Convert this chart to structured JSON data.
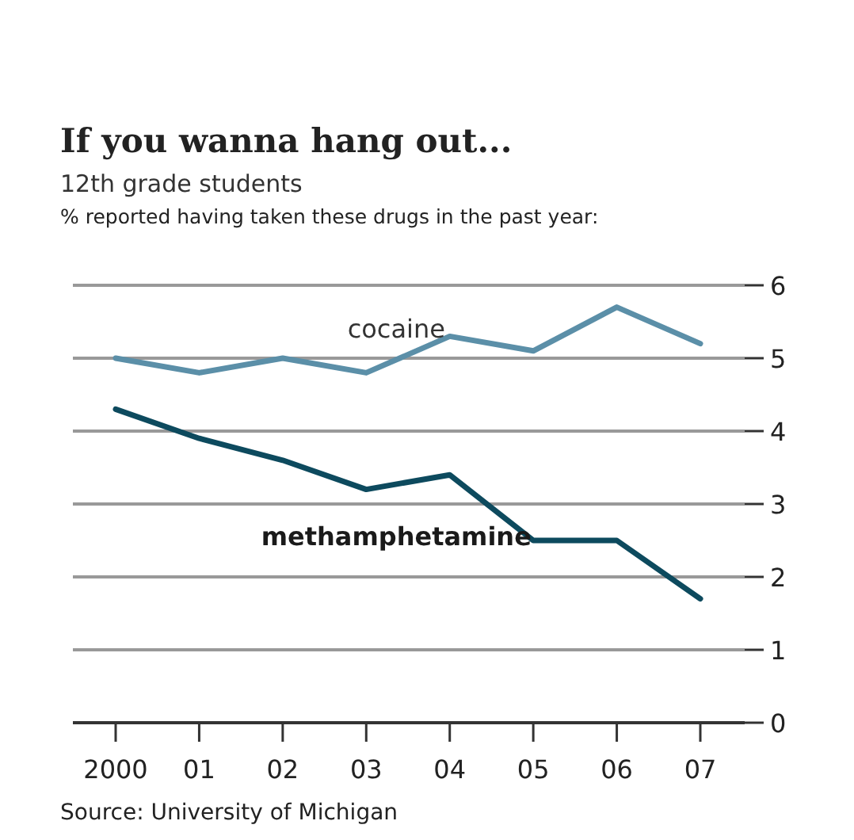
{
  "chart_data": {
    "type": "line",
    "title": "If you wanna hang out...",
    "subtitle": "12th grade students",
    "ylabel": "% reported having taken these drugs in the past year:",
    "categories": [
      "2000",
      "01",
      "02",
      "03",
      "04",
      "05",
      "06",
      "07"
    ],
    "series": [
      {
        "name": "cocaine",
        "color": "#5b8fa8",
        "values": [
          5.0,
          4.8,
          5.0,
          4.8,
          5.3,
          5.1,
          5.7,
          5.2
        ]
      },
      {
        "name": "methamphetamine",
        "color": "#0d4a5e",
        "values": [
          4.3,
          3.9,
          3.6,
          3.2,
          3.4,
          2.5,
          2.5,
          1.7
        ]
      }
    ],
    "ylim": [
      0,
      6
    ],
    "yticks": [
      0,
      1,
      2,
      3,
      4,
      5,
      6
    ],
    "grid": "y",
    "marker": "none",
    "line_style": "solid",
    "annotations": [
      "Source: University of Michigan"
    ]
  }
}
